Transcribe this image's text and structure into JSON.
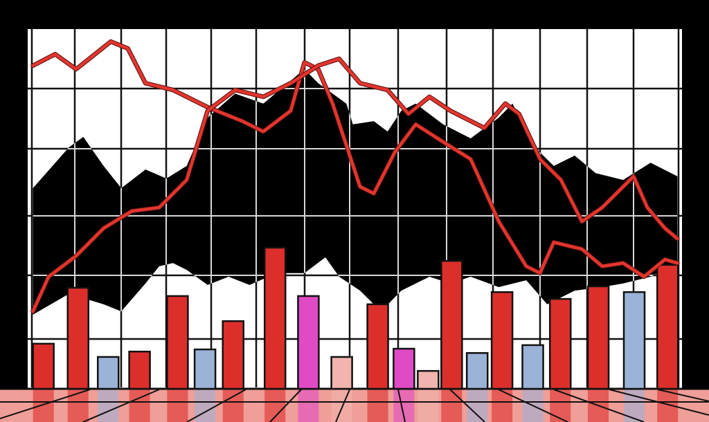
{
  "chart_data": {
    "type": "bar",
    "title": "",
    "xlabel": "",
    "ylabel": "",
    "xlim": [
      0,
      100
    ],
    "ylim": [
      0,
      100
    ],
    "grid": true,
    "legend": "none",
    "colors": {
      "background": "#000000",
      "plot": "#ffffff",
      "red": "#dc2f2c",
      "blue": "#9cb3d8",
      "magenta": "#e04ac4",
      "pink": "#f2b4ae",
      "line": "#e0362f",
      "area": "#000000",
      "floor": "#ef9e98"
    },
    "bars": [
      {
        "x": 2.4,
        "value": 12.2,
        "color": "red"
      },
      {
        "x": 7.7,
        "value": 27.8,
        "color": "red"
      },
      {
        "x": 12.3,
        "value": 8.5,
        "color": "blue"
      },
      {
        "x": 17.1,
        "value": 10.0,
        "color": "red"
      },
      {
        "x": 22.9,
        "value": 25.5,
        "color": "red"
      },
      {
        "x": 27.1,
        "value": 10.6,
        "color": "blue"
      },
      {
        "x": 31.4,
        "value": 18.5,
        "color": "red"
      },
      {
        "x": 37.8,
        "value": 39.0,
        "color": "red"
      },
      {
        "x": 42.9,
        "value": 25.5,
        "color": "magenta"
      },
      {
        "x": 48.0,
        "value": 8.5,
        "color": "pink"
      },
      {
        "x": 53.5,
        "value": 23.2,
        "color": "red"
      },
      {
        "x": 57.5,
        "value": 10.8,
        "color": "magenta"
      },
      {
        "x": 61.2,
        "value": 4.6,
        "color": "pink"
      },
      {
        "x": 64.8,
        "value": 35.3,
        "color": "red"
      },
      {
        "x": 68.7,
        "value": 9.6,
        "color": "blue"
      },
      {
        "x": 72.5,
        "value": 26.6,
        "color": "red"
      },
      {
        "x": 77.2,
        "value": 11.8,
        "color": "blue"
      },
      {
        "x": 81.4,
        "value": 24.7,
        "color": "red"
      },
      {
        "x": 87.2,
        "value": 28.2,
        "color": "red"
      },
      {
        "x": 92.7,
        "value": 26.6,
        "color": "blue"
      },
      {
        "x": 97.8,
        "value": 34.2,
        "color": "red"
      }
    ],
    "area": {
      "upper": [
        [
          0.8,
          55.6
        ],
        [
          6.3,
          67
        ],
        [
          8.5,
          69.9
        ],
        [
          11.6,
          61.8
        ],
        [
          14.3,
          55.6
        ],
        [
          18,
          60.8
        ],
        [
          21.2,
          58.3
        ],
        [
          24.3,
          61.8
        ],
        [
          27.5,
          75.3
        ],
        [
          31.7,
          82
        ],
        [
          36,
          79.2
        ],
        [
          42.3,
          88.8
        ],
        [
          44.4,
          84.9
        ],
        [
          48.7,
          79.2
        ],
        [
          49.7,
          73.4
        ],
        [
          52.9,
          74.3
        ],
        [
          55,
          71.4
        ],
        [
          57.1,
          77.2
        ],
        [
          59.3,
          79.2
        ],
        [
          63.5,
          73.4
        ],
        [
          67.7,
          69.5
        ],
        [
          72,
          75.3
        ],
        [
          74.1,
          79.2
        ],
        [
          77.2,
          67.6
        ],
        [
          80.4,
          61.8
        ],
        [
          83.6,
          64.7
        ],
        [
          86.8,
          59.8
        ],
        [
          91,
          57.9
        ],
        [
          95.2,
          62.7
        ],
        [
          99.3,
          58.9
        ]
      ],
      "lower": [
        [
          0.8,
          20.3
        ],
        [
          6.3,
          26.1
        ],
        [
          11.6,
          23.2
        ],
        [
          14.3,
          21.2
        ],
        [
          18,
          29
        ],
        [
          20.1,
          33.8
        ],
        [
          22.2,
          34.7
        ],
        [
          24.3,
          32.8
        ],
        [
          27.5,
          28.6
        ],
        [
          30.7,
          30.9
        ],
        [
          33.9,
          28.6
        ],
        [
          38.1,
          31.9
        ],
        [
          42.3,
          31.9
        ],
        [
          45.5,
          36.3
        ],
        [
          47.6,
          30.9
        ],
        [
          50.8,
          27
        ],
        [
          54,
          21.2
        ],
        [
          57.1,
          27
        ],
        [
          61.4,
          30.9
        ],
        [
          64.6,
          29
        ],
        [
          67.7,
          30.9
        ],
        [
          72,
          28
        ],
        [
          76.2,
          29.9
        ],
        [
          79.4,
          23.2
        ],
        [
          83.6,
          27
        ],
        [
          87.8,
          28
        ],
        [
          91,
          29
        ],
        [
          95.2,
          30.9
        ],
        [
          99.3,
          34.7
        ]
      ]
    },
    "lines": [
      {
        "points": [
          [
            0.8,
            89.8
          ],
          [
            4.2,
            93
          ],
          [
            7.4,
            88.8
          ],
          [
            12.7,
            96.5
          ],
          [
            15.3,
            94.6
          ],
          [
            18,
            84.9
          ],
          [
            22.2,
            83
          ],
          [
            27.5,
            78.2
          ],
          [
            32.8,
            74.3
          ],
          [
            36,
            71.4
          ],
          [
            40.2,
            77.2
          ],
          [
            42.3,
            90.7
          ],
          [
            44.4,
            88.8
          ],
          [
            46.6,
            79.2
          ],
          [
            48.7,
            67.6
          ],
          [
            50.8,
            56
          ],
          [
            52.9,
            54.1
          ],
          [
            56.1,
            65.6
          ],
          [
            59.3,
            73.4
          ],
          [
            63.5,
            68.5
          ],
          [
            67.7,
            63.7
          ],
          [
            72,
            46.3
          ],
          [
            76.2,
            33.8
          ],
          [
            78.3,
            31.9
          ],
          [
            80.4,
            40.5
          ],
          [
            84.7,
            38.6
          ],
          [
            87.8,
            33.8
          ],
          [
            91,
            34.7
          ],
          [
            94.2,
            30.9
          ],
          [
            97.4,
            35.7
          ],
          [
            99.3,
            34.7
          ]
        ]
      },
      {
        "points": [
          [
            0.8,
            21.2
          ],
          [
            3.2,
            30.9
          ],
          [
            7.4,
            36.7
          ],
          [
            11.6,
            44.4
          ],
          [
            15.9,
            49.2
          ],
          [
            20.1,
            50.2
          ],
          [
            24.3,
            57.9
          ],
          [
            27.5,
            77.2
          ],
          [
            31.7,
            83
          ],
          [
            36,
            81.1
          ],
          [
            40.2,
            84.9
          ],
          [
            44.4,
            89.8
          ],
          [
            47.6,
            91.7
          ],
          [
            50.8,
            84.9
          ],
          [
            55,
            83
          ],
          [
            58.2,
            76.3
          ],
          [
            61.4,
            81.1
          ],
          [
            64.6,
            77.2
          ],
          [
            69.8,
            72.4
          ],
          [
            73,
            79.2
          ],
          [
            75.1,
            76.3
          ],
          [
            78.3,
            63.7
          ],
          [
            81.5,
            57.9
          ],
          [
            84.7,
            46.3
          ],
          [
            87.8,
            50.2
          ],
          [
            91,
            56
          ],
          [
            92.6,
            58.9
          ],
          [
            94.7,
            50.2
          ],
          [
            97.4,
            44.4
          ],
          [
            99.3,
            41.5
          ]
        ]
      }
    ]
  }
}
